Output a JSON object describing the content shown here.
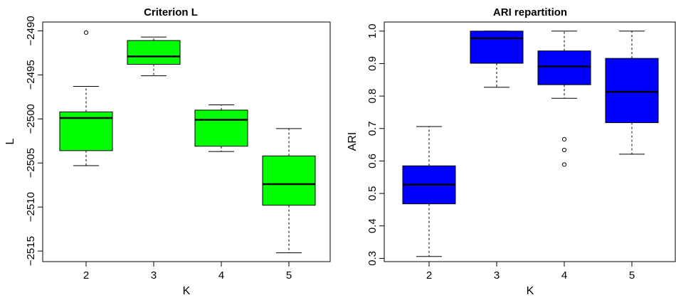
{
  "chart_data": [
    {
      "type": "box",
      "title": "Criterion L",
      "xlabel": "K",
      "ylabel": "L",
      "categories": [
        "2",
        "3",
        "4",
        "5"
      ],
      "y_ticks": [
        -2490,
        -2495,
        -2500,
        -2505,
        -2510,
        -2515
      ],
      "ylim": [
        -2516.2,
        -2489.0
      ],
      "box_color": "#00ff00",
      "boxes": [
        {
          "category": "2",
          "whisker_low": -2505.3,
          "q1": -2503.6,
          "median": -2499.9,
          "q3": -2499.2,
          "whisker_high": -2496.3,
          "outliers": [
            -2490.2
          ]
        },
        {
          "category": "3",
          "whisker_low": -2495.1,
          "q1": -2493.8,
          "median": -2492.9,
          "q3": -2491.1,
          "whisker_high": -2490.7,
          "outliers": []
        },
        {
          "category": "4",
          "whisker_low": -2503.7,
          "q1": -2503.1,
          "median": -2500.1,
          "q3": -2499.0,
          "whisker_high": -2498.4,
          "outliers": []
        },
        {
          "category": "5",
          "whisker_low": -2515.2,
          "q1": -2509.8,
          "median": -2507.4,
          "q3": -2504.2,
          "whisker_high": -2501.1,
          "outliers": []
        }
      ]
    },
    {
      "type": "box",
      "title": "ARI repartition",
      "xlabel": "K",
      "ylabel": "ARI",
      "categories": [
        "2",
        "3",
        "4",
        "5"
      ],
      "y_ticks": [
        0.3,
        0.4,
        0.5,
        0.6,
        0.7,
        0.8,
        0.9,
        1.0
      ],
      "y_tick_labels": [
        "0.3",
        "0.4",
        "0.5",
        "0.6",
        "0.7",
        "0.8",
        "0.9",
        "1.0"
      ],
      "ylim": [
        0.29,
        1.028
      ],
      "box_color": "#0000ff",
      "boxes": [
        {
          "category": "2",
          "whisker_low": 0.306,
          "q1": 0.468,
          "median": 0.527,
          "q3": 0.585,
          "whisker_high": 0.706,
          "outliers": []
        },
        {
          "category": "3",
          "whisker_low": 0.827,
          "q1": 0.901,
          "median": 0.978,
          "q3": 1.0,
          "whisker_high": 1.0,
          "outliers": []
        },
        {
          "category": "4",
          "whisker_low": 0.793,
          "q1": 0.835,
          "median": 0.891,
          "q3": 0.939,
          "whisker_high": 1.0,
          "outliers": [
            0.667,
            0.634,
            0.589
          ]
        },
        {
          "category": "5",
          "whisker_low": 0.621,
          "q1": 0.718,
          "median": 0.813,
          "q3": 0.916,
          "whisker_high": 1.0,
          "outliers": []
        }
      ]
    }
  ]
}
